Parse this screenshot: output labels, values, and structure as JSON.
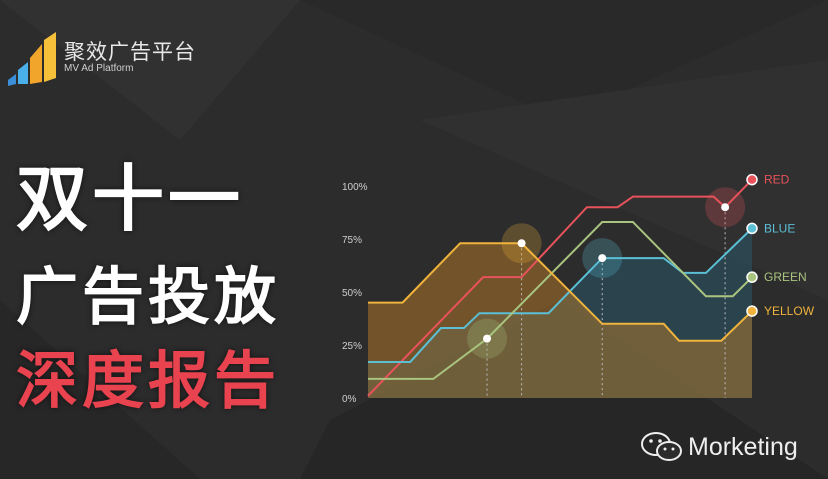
{
  "logo": {
    "title": "聚效广告平台",
    "subtitle": "MV Ad Platform"
  },
  "headline": {
    "line1": "双十一",
    "line2": "广告投放",
    "line3": "深度报告"
  },
  "watermark": {
    "text": "Morketing",
    "icon": "wechat-icon"
  },
  "colors": {
    "background": "#2c2c2d",
    "red": "#e8525a",
    "blue": "#5bbfd6",
    "green": "#a9c47f",
    "yellow": "#f0b43c",
    "headline_accent": "#e8434f"
  },
  "chart_data": {
    "type": "line",
    "title": "",
    "xlabel": "",
    "ylabel": "",
    "ylim": [
      0,
      100
    ],
    "yticks": [
      "0%",
      "25%",
      "50%",
      "75%",
      "100%"
    ],
    "xlim": [
      0,
      100
    ],
    "grid": false,
    "legend": "right, at line ends",
    "series": [
      {
        "name": "RED",
        "color": "#e8525a",
        "points": [
          [
            0,
            1
          ],
          [
            30,
            57
          ],
          [
            40,
            57
          ],
          [
            57,
            90
          ],
          [
            65,
            90
          ],
          [
            69,
            95
          ],
          [
            90,
            95
          ],
          [
            93,
            90
          ],
          [
            100,
            103
          ]
        ],
        "highlight": [
          93,
          90
        ]
      },
      {
        "name": "BLUE",
        "color": "#5bbfd6",
        "points": [
          [
            0,
            17
          ],
          [
            11,
            17
          ],
          [
            19,
            33
          ],
          [
            25,
            33
          ],
          [
            29,
            40
          ],
          [
            47,
            40
          ],
          [
            61,
            66
          ],
          [
            77,
            66
          ],
          [
            82,
            59
          ],
          [
            88,
            59
          ],
          [
            100,
            80
          ]
        ],
        "highlight": [
          61,
          66
        ]
      },
      {
        "name": "GREEN",
        "color": "#a9c47f",
        "points": [
          [
            0,
            9
          ],
          [
            17,
            9
          ],
          [
            31,
            28
          ],
          [
            61,
            83
          ],
          [
            69,
            83
          ],
          [
            88,
            48
          ],
          [
            95,
            48
          ],
          [
            100,
            57
          ]
        ],
        "highlight": [
          31,
          28
        ]
      },
      {
        "name": "YELLOW",
        "color": "#f0b43c",
        "points": [
          [
            0,
            45
          ],
          [
            9,
            45
          ],
          [
            24,
            73
          ],
          [
            40,
            73
          ],
          [
            61,
            35
          ],
          [
            77,
            35
          ],
          [
            81,
            27
          ],
          [
            92,
            27
          ],
          [
            100,
            41
          ]
        ],
        "highlight": [
          40,
          73
        ]
      }
    ]
  }
}
